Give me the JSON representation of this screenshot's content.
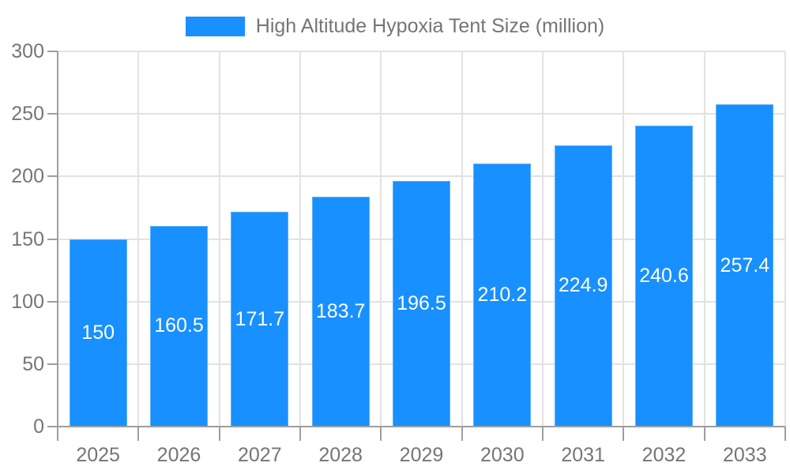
{
  "chart_data": {
    "type": "bar",
    "title": "High Altitude Hypoxia Tent Size (million)",
    "categories": [
      "2025",
      "2026",
      "2027",
      "2028",
      "2029",
      "2030",
      "2031",
      "2032",
      "2033"
    ],
    "values": [
      150,
      160.5,
      171.7,
      183.7,
      196.5,
      210.2,
      224.9,
      240.6,
      257.4
    ],
    "value_labels": [
      "150",
      "160.5",
      "171.7",
      "183.7",
      "196.5",
      "210.2",
      "224.9",
      "240.6",
      "257.4"
    ],
    "xlabel": "",
    "ylabel": "",
    "ylim": [
      0,
      300
    ],
    "yticks": [
      0,
      50,
      100,
      150,
      200,
      250,
      300
    ],
    "ytick_labels": [
      "0",
      "50",
      "100",
      "150",
      "200",
      "250",
      "300"
    ],
    "grid": "on",
    "legend_position": "top-center",
    "value_labels_position": "centered-inside-bars"
  },
  "colors": {
    "bar": "#1890ff",
    "bar_border": "#5db2f7",
    "grid": "#e2e2e2",
    "axis": "#9e9e9e",
    "text": "#757575",
    "value_text": "#ffffff",
    "background": "#ffffff"
  }
}
